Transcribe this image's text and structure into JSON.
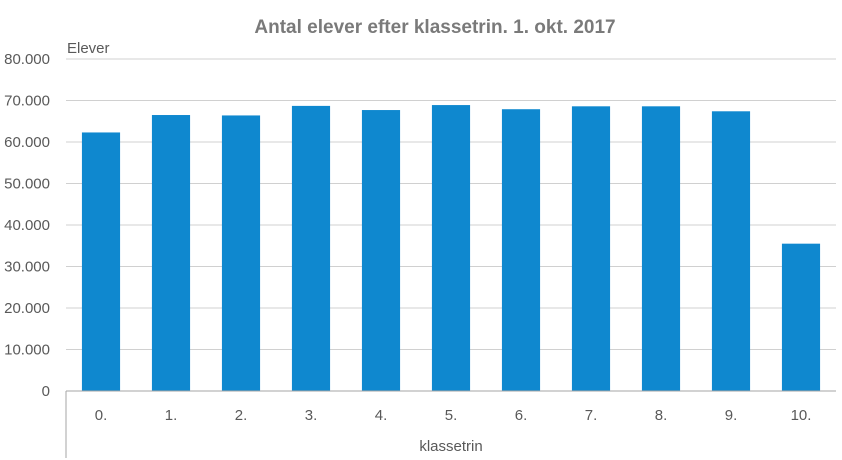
{
  "chart_data": {
    "type": "bar",
    "title": "Antal elever efter klassetrin. 1. okt. 2017",
    "ylabel": "Elever",
    "xlabel": "klassetrin",
    "categories": [
      "0.",
      "1.",
      "2.",
      "3.",
      "4.",
      "5.",
      "6.",
      "7.",
      "8.",
      "9.",
      "10."
    ],
    "values": [
      62300,
      66500,
      66400,
      68700,
      67700,
      68900,
      67900,
      68600,
      68600,
      67400,
      35500
    ],
    "ylim": [
      0,
      80000
    ],
    "yticks": [
      0,
      10000,
      20000,
      30000,
      40000,
      50000,
      60000,
      70000,
      80000
    ],
    "ytick_labels": [
      "0",
      "10.000",
      "20.000",
      "30.000",
      "40.000",
      "50.000",
      "60.000",
      "70.000",
      "80.000"
    ],
    "grid": true,
    "legend": "none",
    "bar_color": "#0f88cf"
  }
}
